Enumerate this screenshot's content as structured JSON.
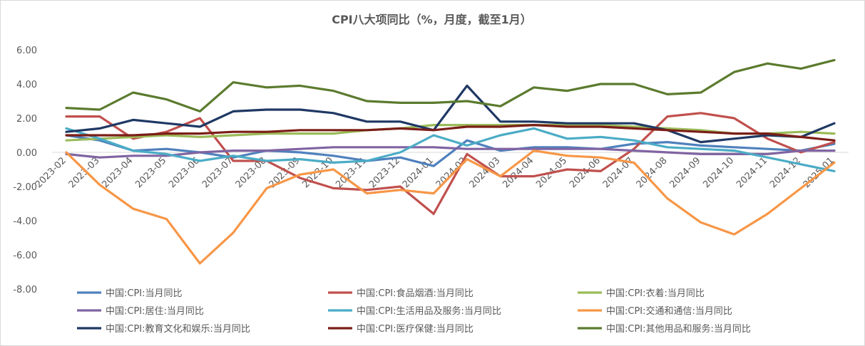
{
  "chart_data": {
    "type": "line",
    "title": "CPI八大项同比（%，月度，截至1月）",
    "xlabel": "",
    "ylabel": "",
    "ylim": [
      -8,
      6
    ],
    "yticks": [
      "6.00",
      "4.00",
      "2.00",
      "0.00",
      "-2.00",
      "-4.00",
      "-6.00",
      "-8.00"
    ],
    "grid": false,
    "legend_position": "bottom",
    "categories": [
      "2023-02",
      "2023-03",
      "2023-04",
      "2023-05",
      "2023-06",
      "2023-07",
      "2023-08",
      "2023-09",
      "2023-10",
      "2023-11",
      "2023-12",
      "2024-01",
      "2024-02",
      "2024-03",
      "2024-04",
      "2024-05",
      "2024-06",
      "2024-07",
      "2024-08",
      "2024-09",
      "2024-10",
      "2024-11",
      "2024-12",
      "2025-01"
    ],
    "series": [
      {
        "name": "中国:CPI:当月同比",
        "color": "#4f81bd",
        "values": [
          1.0,
          0.7,
          0.1,
          0.2,
          0.0,
          -0.3,
          0.1,
          0.0,
          -0.2,
          -0.5,
          -0.3,
          -0.8,
          0.7,
          0.1,
          0.3,
          0.3,
          0.2,
          0.5,
          0.6,
          0.4,
          0.3,
          0.2,
          0.1,
          0.5
        ]
      },
      {
        "name": "中国:CPI:食品烟酒:当月同比",
        "color": "#c0504d",
        "values": [
          2.1,
          2.1,
          0.8,
          1.2,
          2.0,
          -0.5,
          -0.5,
          -1.5,
          -2.1,
          -2.2,
          -2.0,
          -3.6,
          -0.1,
          -1.4,
          -1.4,
          -1.0,
          -1.1,
          0.2,
          2.1,
          2.3,
          2.0,
          0.8,
          0.0,
          0.6
        ]
      },
      {
        "name": "中国:CPI:衣着:当月同比",
        "color": "#9bbb59",
        "values": [
          0.7,
          0.8,
          0.9,
          1.0,
          0.9,
          1.0,
          1.1,
          1.1,
          1.1,
          1.3,
          1.4,
          1.6,
          1.6,
          1.6,
          1.6,
          1.6,
          1.6,
          1.5,
          1.4,
          1.3,
          1.1,
          1.1,
          1.2,
          1.1
        ]
      },
      {
        "name": "中国:CPI:居住:当月同比",
        "color": "#8064a2",
        "values": [
          -0.1,
          -0.3,
          -0.2,
          -0.2,
          0.0,
          0.1,
          0.1,
          0.2,
          0.3,
          0.3,
          0.3,
          0.3,
          0.2,
          0.2,
          0.2,
          0.2,
          0.2,
          0.1,
          0.0,
          -0.1,
          -0.1,
          -0.1,
          0.1,
          0.1
        ]
      },
      {
        "name": "中国:CPI:生活用品及服务:当月同比",
        "color": "#4bacc6",
        "values": [
          1.4,
          0.8,
          0.1,
          -0.1,
          -0.5,
          -0.2,
          -0.5,
          -0.4,
          -0.6,
          -0.5,
          0.0,
          1.0,
          0.4,
          1.0,
          1.4,
          0.8,
          0.9,
          0.7,
          0.3,
          0.2,
          0.1,
          -0.3,
          -0.7,
          -1.1
        ]
      },
      {
        "name": "中国:CPI:交通和通信:当月同比",
        "color": "#f79646",
        "values": [
          0.0,
          -1.9,
          -3.3,
          -3.9,
          -6.5,
          -4.7,
          -2.1,
          -1.3,
          -1.0,
          -2.4,
          -2.2,
          -2.4,
          -0.4,
          -1.4,
          0.1,
          -0.2,
          -0.3,
          -0.6,
          -2.7,
          -4.1,
          -4.8,
          -3.6,
          -2.1,
          -0.6
        ]
      },
      {
        "name": "中国:CPI:教育文化和娱乐:当月同比",
        "color": "#1f3864",
        "values": [
          1.2,
          1.4,
          1.9,
          1.7,
          1.5,
          2.4,
          2.5,
          2.5,
          2.3,
          1.8,
          1.8,
          1.3,
          3.9,
          1.8,
          1.8,
          1.7,
          1.7,
          1.7,
          1.3,
          0.6,
          0.8,
          1.0,
          0.9,
          1.7
        ]
      },
      {
        "name": "中国:CPI:医疗保健:当月同比",
        "color": "#7b1e17",
        "values": [
          1.0,
          1.0,
          1.0,
          1.1,
          1.1,
          1.2,
          1.2,
          1.3,
          1.3,
          1.3,
          1.4,
          1.3,
          1.5,
          1.5,
          1.6,
          1.5,
          1.5,
          1.4,
          1.3,
          1.2,
          1.1,
          1.1,
          0.9,
          0.7
        ]
      },
      {
        "name": "中国:CPI:其他用品和服务:当月同比",
        "color": "#5b7b2e",
        "values": [
          2.6,
          2.5,
          3.5,
          3.1,
          2.4,
          4.1,
          3.8,
          3.9,
          3.6,
          3.0,
          2.9,
          2.9,
          3.0,
          2.7,
          3.8,
          3.6,
          4.0,
          4.0,
          3.4,
          3.5,
          4.7,
          5.2,
          4.9,
          5.4
        ]
      }
    ]
  }
}
